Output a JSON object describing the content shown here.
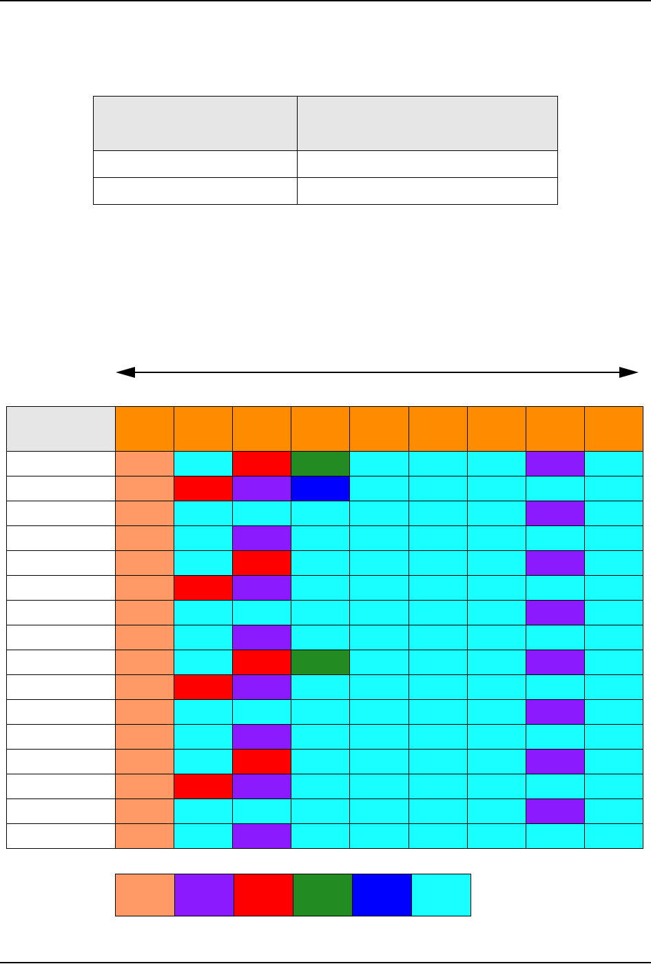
{
  "colors": {
    "orange": "#ff8c00",
    "salmon": "#ff9966",
    "purple": "#8c1aff",
    "red": "#ff0000",
    "green": "#228b22",
    "blue": "#0000ff",
    "cyan": "#19ffff",
    "header_gray": "#e6e6e6"
  },
  "summary_table": {
    "rows": 3,
    "cols": 2
  },
  "grid": {
    "header_color": "orange",
    "columns": 9,
    "rows": [
      [
        "salmon",
        "cyan",
        "red",
        "green",
        "cyan",
        "cyan",
        "cyan",
        "purple",
        "cyan"
      ],
      [
        "salmon",
        "red",
        "purple",
        "blue",
        "cyan",
        "cyan",
        "cyan",
        "cyan",
        "cyan"
      ],
      [
        "salmon",
        "cyan",
        "cyan",
        "cyan",
        "cyan",
        "cyan",
        "cyan",
        "purple",
        "cyan"
      ],
      [
        "salmon",
        "cyan",
        "purple",
        "cyan",
        "cyan",
        "cyan",
        "cyan",
        "cyan",
        "cyan"
      ],
      [
        "salmon",
        "cyan",
        "red",
        "cyan",
        "cyan",
        "cyan",
        "cyan",
        "purple",
        "cyan"
      ],
      [
        "salmon",
        "red",
        "purple",
        "cyan",
        "cyan",
        "cyan",
        "cyan",
        "cyan",
        "cyan"
      ],
      [
        "salmon",
        "cyan",
        "cyan",
        "cyan",
        "cyan",
        "cyan",
        "cyan",
        "purple",
        "cyan"
      ],
      [
        "salmon",
        "cyan",
        "purple",
        "cyan",
        "cyan",
        "cyan",
        "cyan",
        "cyan",
        "cyan"
      ],
      [
        "salmon",
        "cyan",
        "red",
        "green",
        "cyan",
        "cyan",
        "cyan",
        "purple",
        "cyan"
      ],
      [
        "salmon",
        "red",
        "purple",
        "cyan",
        "cyan",
        "cyan",
        "cyan",
        "cyan",
        "cyan"
      ],
      [
        "salmon",
        "cyan",
        "cyan",
        "cyan",
        "cyan",
        "cyan",
        "cyan",
        "purple",
        "cyan"
      ],
      [
        "salmon",
        "cyan",
        "purple",
        "cyan",
        "cyan",
        "cyan",
        "cyan",
        "cyan",
        "cyan"
      ],
      [
        "salmon",
        "cyan",
        "red",
        "cyan",
        "cyan",
        "cyan",
        "cyan",
        "purple",
        "cyan"
      ],
      [
        "salmon",
        "red",
        "purple",
        "cyan",
        "cyan",
        "cyan",
        "cyan",
        "cyan",
        "cyan"
      ],
      [
        "salmon",
        "cyan",
        "cyan",
        "cyan",
        "cyan",
        "cyan",
        "cyan",
        "purple",
        "cyan"
      ],
      [
        "salmon",
        "cyan",
        "purple",
        "cyan",
        "cyan",
        "cyan",
        "cyan",
        "cyan",
        "cyan"
      ]
    ]
  },
  "legend": [
    "salmon",
    "purple",
    "red",
    "green",
    "blue",
    "cyan"
  ]
}
